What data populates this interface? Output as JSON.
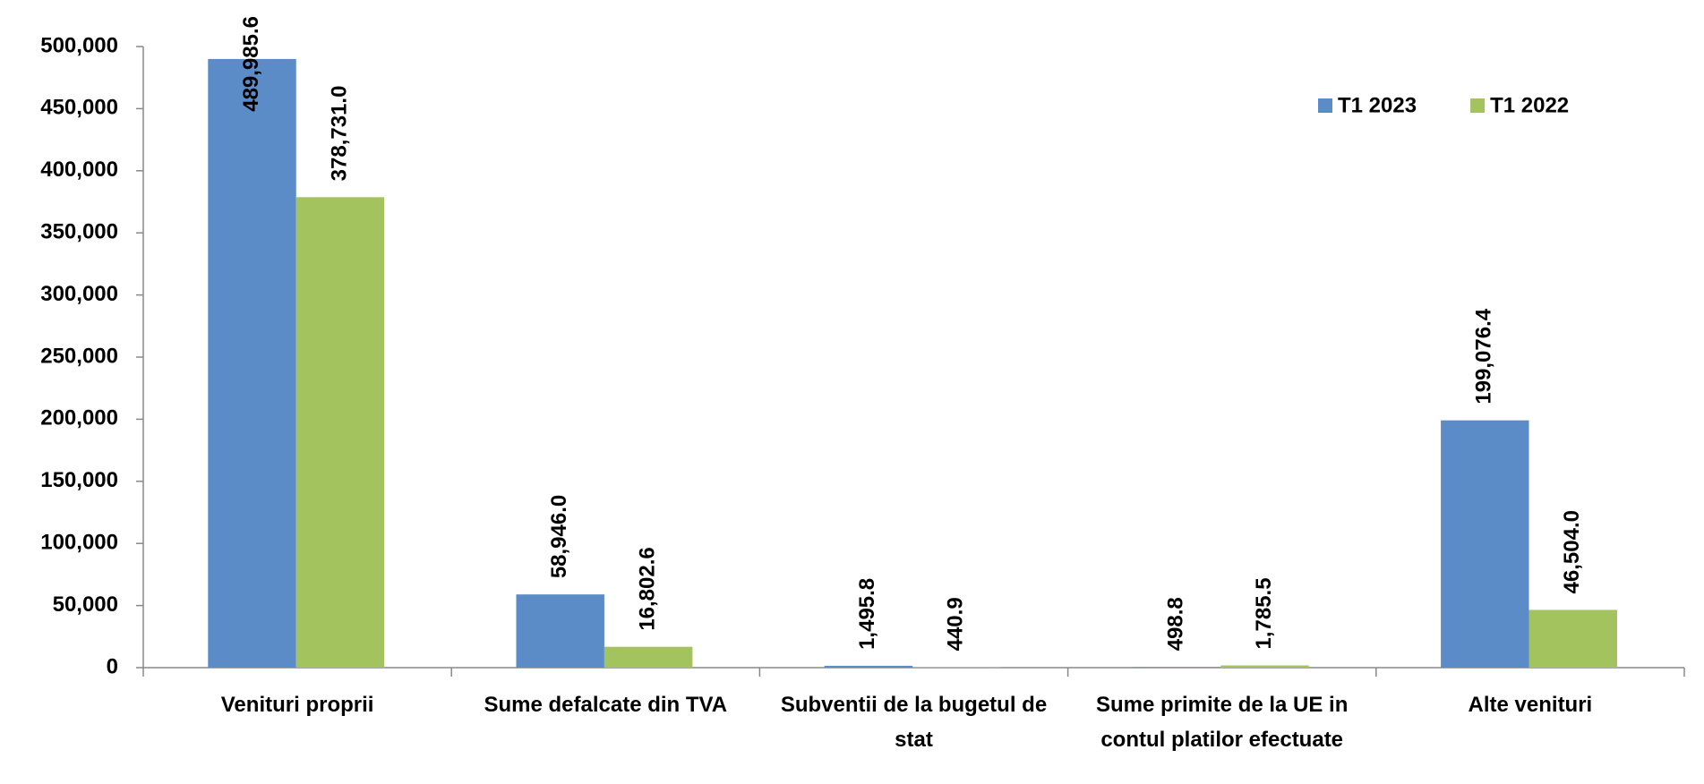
{
  "chart_data": {
    "type": "bar",
    "categories": [
      "Venituri proprii",
      "Sume defalcate din TVA",
      "Subventii de la bugetul de stat",
      "Sume primite de la UE in contul platilor efectuate",
      "Alte venituri"
    ],
    "series": [
      {
        "name": "T1 2023",
        "color": "#5b8cc8",
        "values": [
          489985.6,
          58946.0,
          1495.8,
          498.8,
          199076.4
        ],
        "value_labels": [
          "489,985.6",
          "58,946.0",
          "1,495.8",
          "498.8",
          "199,076.4"
        ]
      },
      {
        "name": "T1 2022",
        "color": "#a2c35e",
        "values": [
          378731.0,
          16802.6,
          440.9,
          1785.5,
          46504.0
        ],
        "value_labels": [
          "378,731.0",
          "16,802.6",
          "440.9",
          "1,785.5",
          "46,504.0"
        ]
      }
    ],
    "ylim": [
      0,
      500000
    ],
    "yticks": [
      0,
      {
        "value": 50000,
        "label": "50,000"
      },
      {
        "value": 100000,
        "label": "100,000"
      },
      {
        "value": 150000,
        "label": "150,000"
      },
      {
        "value": 200000,
        "label": "200,000"
      },
      {
        "value": 250000,
        "label": "250,000"
      },
      {
        "value": 300000,
        "label": "300,000"
      },
      {
        "value": 350000,
        "label": "350,000"
      },
      {
        "value": 400000,
        "label": "400,000"
      },
      {
        "value": 450000,
        "label": "450,000"
      },
      {
        "value": 500000,
        "label": "500,000"
      }
    ],
    "legend": "top-right"
  }
}
